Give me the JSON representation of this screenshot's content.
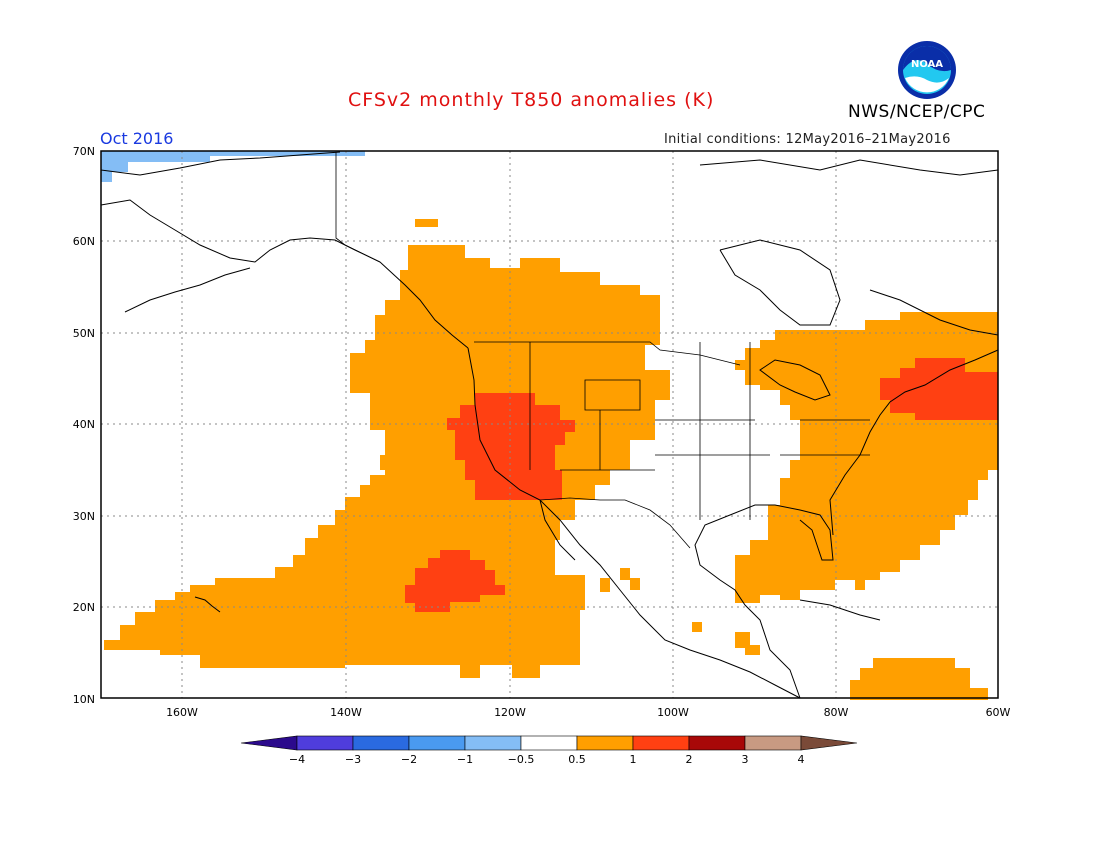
{
  "title": "CFSv2 monthly T850 anomalies (K)",
  "agency": "NWS/NCEP/CPC",
  "valid_month": "Oct 2016",
  "initial_conditions": "Initial conditions: 12May2016–21May2016",
  "logo_text": "NOAA",
  "map": {
    "lat_labels": [
      "70N",
      "60N",
      "50N",
      "40N",
      "30N",
      "20N",
      "10N"
    ],
    "lon_labels": [
      "160W",
      "140W",
      "120W",
      "100W",
      "80W",
      "60W"
    ],
    "extent": {
      "lon_min": -170,
      "lon_max": -60,
      "lat_min": 10,
      "lat_max": 70
    }
  },
  "colorbar": {
    "levels": [
      "−4",
      "−3",
      "−2",
      "−1",
      "−0.5",
      "0.5",
      "1",
      "2",
      "3",
      "4"
    ],
    "colors": [
      "#2b0a8c",
      "#4f3ddc",
      "#2a6ae0",
      "#4a9af0",
      "#84bdf5",
      "#ffffff",
      "#ff9f00",
      "#ff4012",
      "#a80808",
      "#c89a82",
      "#7a4a38"
    ]
  }
}
